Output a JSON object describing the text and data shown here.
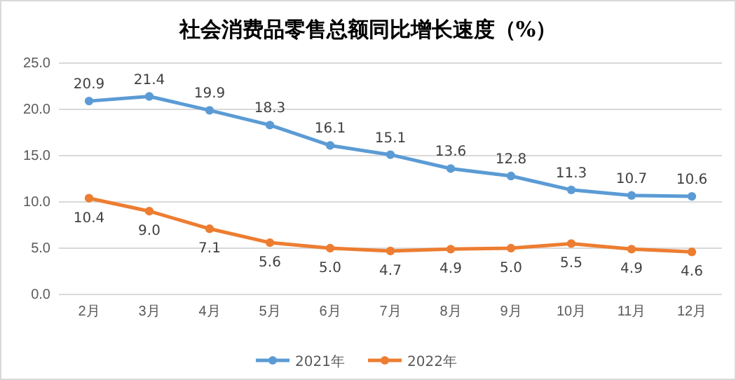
{
  "chart_data": {
    "type": "line",
    "title": "社会消费品零售总额同比增长速度（%）",
    "categories": [
      "2月",
      "3月",
      "4月",
      "5月",
      "6月",
      "7月",
      "8月",
      "9月",
      "10月",
      "11月",
      "12月"
    ],
    "series": [
      {
        "name": "2021年",
        "color": "#5b9bd5",
        "values": [
          20.9,
          21.4,
          19.9,
          18.3,
          16.1,
          15.1,
          13.6,
          12.8,
          11.3,
          10.7,
          10.6
        ],
        "value_labels": [
          "20.9",
          "21.4",
          "19.9",
          "18.3",
          "16.1",
          "15.1",
          "13.6",
          "12.8",
          "11.3",
          "10.7",
          "10.6"
        ]
      },
      {
        "name": "2022年",
        "color": "#ed7d31",
        "values": [
          10.4,
          9.0,
          7.1,
          5.6,
          5.0,
          4.7,
          4.9,
          5.0,
          5.5,
          4.9,
          4.6
        ],
        "value_labels": [
          "10.4",
          "9.0",
          "7.1",
          "5.6",
          "5.0",
          "4.7",
          "4.9",
          "5.0",
          "5.5",
          "4.9",
          "4.6"
        ]
      }
    ],
    "ylim": [
      0,
      25
    ],
    "yticks": [
      {
        "value": 0,
        "label": "0.0"
      },
      {
        "value": 5,
        "label": "5.0"
      },
      {
        "value": 10,
        "label": "10.0"
      },
      {
        "value": 15,
        "label": "15.0"
      },
      {
        "value": 20,
        "label": "20.0"
      },
      {
        "value": 25,
        "label": "25.0"
      }
    ],
    "grid": "y",
    "legend": "bottom",
    "marker": "circle",
    "line_style": "solid"
  }
}
